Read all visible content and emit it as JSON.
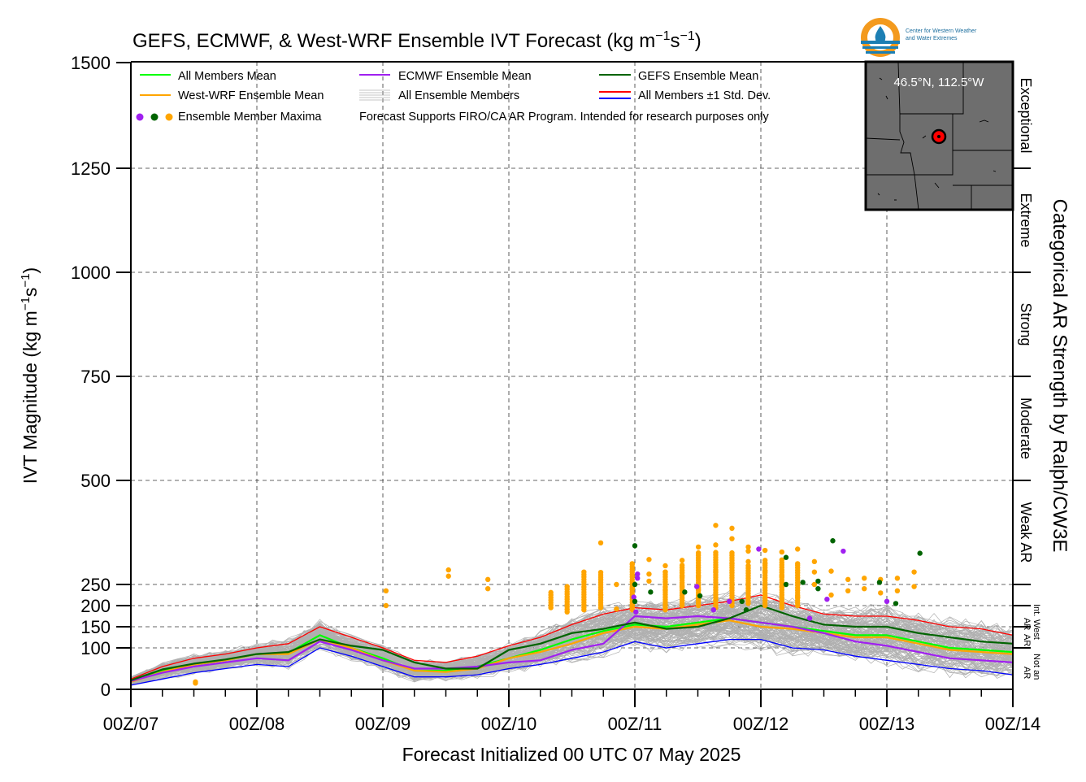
{
  "chart_data": {
    "type": "line",
    "title_main": "GEFS, ECMWF, & West-WRF Ensemble IVT Forecast (kg m",
    "title_exp1": "−1",
    "title_mid": "s",
    "title_exp2": "−1",
    "title_end": ")",
    "ylabel_main": "IVT Magnitude (kg m",
    "ylabel_exp1": "−1",
    "ylabel_mid": "s",
    "ylabel_exp2": "−1",
    "ylabel_end": ")",
    "xlabel": "Forecast Initialized 00 UTC 07 May 2025",
    "right_axis_label": "Categorical AR Strength by Ralph/CW3E",
    "ylim": [
      0,
      1500
    ],
    "xlim": [
      0,
      168
    ],
    "y_ticks": [
      0,
      100,
      150,
      200,
      250,
      500,
      750,
      1000,
      1250,
      1500
    ],
    "y_tick_labels": [
      "0",
      "100",
      "150",
      "200",
      "250",
      "500",
      "750",
      "1000",
      "1250",
      "1500"
    ],
    "x_ticks": [
      0,
      24,
      48,
      72,
      96,
      120,
      144,
      168
    ],
    "x_tick_labels": [
      "00Z/07",
      "00Z/08",
      "00Z/09",
      "00Z/10",
      "00Z/11",
      "00Z/12",
      "00Z/13",
      "00Z/14"
    ],
    "hgrid": [
      100,
      150,
      200,
      250,
      500,
      750,
      1000,
      1250
    ],
    "vgrid": [
      24,
      48,
      72,
      96,
      120,
      144
    ],
    "categories": [
      {
        "name": "Exceptional",
        "lo": 1250,
        "hi": 1500
      },
      {
        "name": "Extreme",
        "lo": 1000,
        "hi": 1250
      },
      {
        "name": "Strong",
        "lo": 750,
        "hi": 1000
      },
      {
        "name": "Moderate",
        "lo": 500,
        "hi": 750
      },
      {
        "name": "Weak AR",
        "lo": 250,
        "hi": 500
      }
    ],
    "small_categories": {
      "int": "Int.",
      "ar1": "AR",
      "west": "West",
      "ar2": "AR",
      "not_an": "Not an",
      "ar3": "AR"
    },
    "legend": {
      "all_mean": "All Members Mean",
      "wrf_mean": "West-WRF Ensemble Mean",
      "maxima": "Ensemble Member Maxima",
      "ecmwf_mean": "ECMWF Ensemble Mean",
      "all_members": "All Ensemble Members",
      "gefs_mean": "GEFS Ensemble Mean",
      "std_dev": "All Members ±1 Std. Dev.",
      "note": "Forecast Supports FIRO/CA AR Program. Intended for research purposes only"
    },
    "colors": {
      "all_mean": "#00ff00",
      "wrf": "#ffa500",
      "ecmwf": "#a020f0",
      "gefs": "#006400",
      "plus_std": "#ff0000",
      "minus_std": "#0000ff",
      "members": "#b0b0b0",
      "map_bg": "#6e6e6e"
    },
    "location_label": "46.5°N, 112.5°W",
    "logo_line1": "Center for Western Weather",
    "logo_line2": "and Water Extremes",
    "x": [
      0,
      6,
      12,
      18,
      24,
      30,
      36,
      42,
      48,
      54,
      60,
      66,
      72,
      78,
      84,
      90,
      96,
      102,
      108,
      114,
      120,
      126,
      132,
      138,
      144,
      150,
      156,
      162,
      168
    ],
    "series": [
      {
        "name": "All Members Mean",
        "key": "all_mean",
        "width": 2.2,
        "values": [
          20,
          45,
          60,
          70,
          85,
          88,
          130,
          100,
          75,
          45,
          45,
          55,
          75,
          95,
          120,
          140,
          155,
          150,
          160,
          170,
          160,
          150,
          140,
          130,
          130,
          115,
          100,
          95,
          90
        ]
      },
      {
        "name": "West-WRF Ensemble Mean",
        "key": "wrf",
        "width": 2.2,
        "values": [
          18,
          42,
          60,
          70,
          85,
          85,
          120,
          100,
          70,
          45,
          42,
          50,
          75,
          90,
          110,
          135,
          150,
          145,
          155,
          165,
          150,
          145,
          135,
          125,
          125,
          110,
          95,
          90,
          85
        ]
      },
      {
        "name": "ECMWF Ensemble Mean",
        "key": "ecmwf",
        "width": 2.2,
        "values": [
          20,
          40,
          55,
          65,
          75,
          70,
          115,
          95,
          70,
          50,
          50,
          55,
          65,
          70,
          95,
          110,
          175,
          170,
          175,
          170,
          160,
          150,
          135,
          115,
          105,
          90,
          75,
          70,
          65
        ]
      },
      {
        "name": "GEFS Ensemble Mean",
        "key": "gefs",
        "width": 2.2,
        "values": [
          22,
          48,
          62,
          72,
          85,
          90,
          120,
          105,
          95,
          65,
          50,
          50,
          95,
          110,
          135,
          145,
          160,
          145,
          150,
          170,
          200,
          175,
          155,
          150,
          150,
          135,
          125,
          115,
          110
        ]
      },
      {
        "name": "All Members +1 Std. Dev.",
        "key": "plus_std",
        "width": 1.3,
        "values": [
          25,
          55,
          75,
          85,
          100,
          110,
          150,
          125,
          100,
          70,
          65,
          80,
          105,
          125,
          155,
          180,
          195,
          190,
          200,
          210,
          225,
          200,
          180,
          175,
          175,
          165,
          150,
          145,
          130
        ]
      },
      {
        "name": "All Members -1 Std. Dev.",
        "key": "minus_std",
        "width": 1.3,
        "values": [
          10,
          25,
          40,
          50,
          60,
          55,
          100,
          80,
          55,
          30,
          30,
          35,
          50,
          60,
          75,
          90,
          115,
          100,
          110,
          120,
          120,
          100,
          95,
          80,
          70,
          60,
          50,
          45,
          35
        ]
      }
    ],
    "maxima": [
      {
        "x": 12.3,
        "values": [
          15,
          18
        ]
      },
      {
        "x": 48.6,
        "values": [
          235,
          200
        ]
      },
      {
        "x": 60.5,
        "values": [
          285,
          270
        ]
      },
      {
        "x": 68.0,
        "values": [
          262,
          240
        ]
      },
      {
        "x": 89.5,
        "values": [
          350,
          262,
          225
        ]
      },
      {
        "x": 92.5,
        "values": [
          250,
          192
        ]
      },
      {
        "x": 95.5,
        "values": [
          300,
          240,
          200
        ]
      },
      {
        "x": 98.7,
        "values": [
          310,
          275,
          258
        ]
      },
      {
        "x": 101.8,
        "values": [
          295,
          280,
          236
        ]
      },
      {
        "x": 105.0,
        "values": [
          308,
          270,
          245
        ]
      },
      {
        "x": 108.1,
        "values": [
          340,
          270,
          238
        ]
      },
      {
        "x": 111.4,
        "values": [
          392,
          345,
          280
        ]
      },
      {
        "x": 114.5,
        "values": [
          385,
          360,
          300
        ]
      },
      {
        "x": 117.6,
        "values": [
          340,
          330,
          305
        ]
      },
      {
        "x": 120.8,
        "values": [
          332,
          300,
          282
        ]
      },
      {
        "x": 124.0,
        "values": [
          328,
          270,
          245
        ]
      },
      {
        "x": 127.0,
        "values": [
          335,
          300,
          220
        ]
      },
      {
        "x": 130.2,
        "values": [
          305,
          280,
          250
        ]
      },
      {
        "x": 133.4,
        "values": [
          282,
          225
        ]
      },
      {
        "x": 136.6,
        "values": [
          262,
          235
        ]
      },
      {
        "x": 139.7,
        "values": [
          265,
          240
        ]
      },
      {
        "x": 142.8,
        "values": [
          262,
          230
        ]
      },
      {
        "x": 146.0,
        "values": [
          265,
          235
        ]
      },
      {
        "x": 149.2,
        "values": [
          280,
          245
        ]
      }
    ],
    "maxima_columns": [
      {
        "x": 80.0,
        "top": 235,
        "bottom": 195
      },
      {
        "x": 83.1,
        "top": 250,
        "bottom": 185
      },
      {
        "x": 86.3,
        "top": 280,
        "bottom": 190
      },
      {
        "x": 89.5,
        "top": 280,
        "bottom": 195
      },
      {
        "x": 95.5,
        "top": 300,
        "bottom": 190
      },
      {
        "x": 101.8,
        "top": 280,
        "bottom": 190
      },
      {
        "x": 105.0,
        "top": 300,
        "bottom": 200
      },
      {
        "x": 108.1,
        "top": 330,
        "bottom": 200
      },
      {
        "x": 111.4,
        "top": 330,
        "bottom": 195
      },
      {
        "x": 114.5,
        "top": 330,
        "bottom": 200
      },
      {
        "x": 117.6,
        "top": 300,
        "bottom": 205
      },
      {
        "x": 120.8,
        "top": 310,
        "bottom": 200
      },
      {
        "x": 124.0,
        "top": 310,
        "bottom": 195
      },
      {
        "x": 127.0,
        "top": 300,
        "bottom": 200
      }
    ],
    "maxima_ecmwf": [
      {
        "x": 96.5,
        "y": 275
      },
      {
        "x": 96.5,
        "y": 265
      },
      {
        "x": 95.8,
        "y": 220
      },
      {
        "x": 96.2,
        "y": 185
      },
      {
        "x": 107.8,
        "y": 245
      },
      {
        "x": 111.0,
        "y": 190
      },
      {
        "x": 114.0,
        "y": 210
      },
      {
        "x": 119.6,
        "y": 335
      },
      {
        "x": 129.3,
        "y": 170
      },
      {
        "x": 132.6,
        "y": 215
      },
      {
        "x": 135.7,
        "y": 330
      },
      {
        "x": 144.0,
        "y": 210
      }
    ],
    "maxima_gefs": [
      {
        "x": 96.0,
        "y": 343
      },
      {
        "x": 96.0,
        "y": 250
      },
      {
        "x": 96.0,
        "y": 210
      },
      {
        "x": 99.0,
        "y": 232
      },
      {
        "x": 105.5,
        "y": 232
      },
      {
        "x": 108.4,
        "y": 223
      },
      {
        "x": 116.4,
        "y": 210
      },
      {
        "x": 117.2,
        "y": 190
      },
      {
        "x": 124.8,
        "y": 315
      },
      {
        "x": 124.8,
        "y": 250
      },
      {
        "x": 128.0,
        "y": 255
      },
      {
        "x": 130.9,
        "y": 258
      },
      {
        "x": 130.9,
        "y": 240
      },
      {
        "x": 133.7,
        "y": 355
      },
      {
        "x": 142.6,
        "y": 255
      },
      {
        "x": 145.7,
        "y": 205
      },
      {
        "x": 150.3,
        "y": 325
      }
    ]
  }
}
